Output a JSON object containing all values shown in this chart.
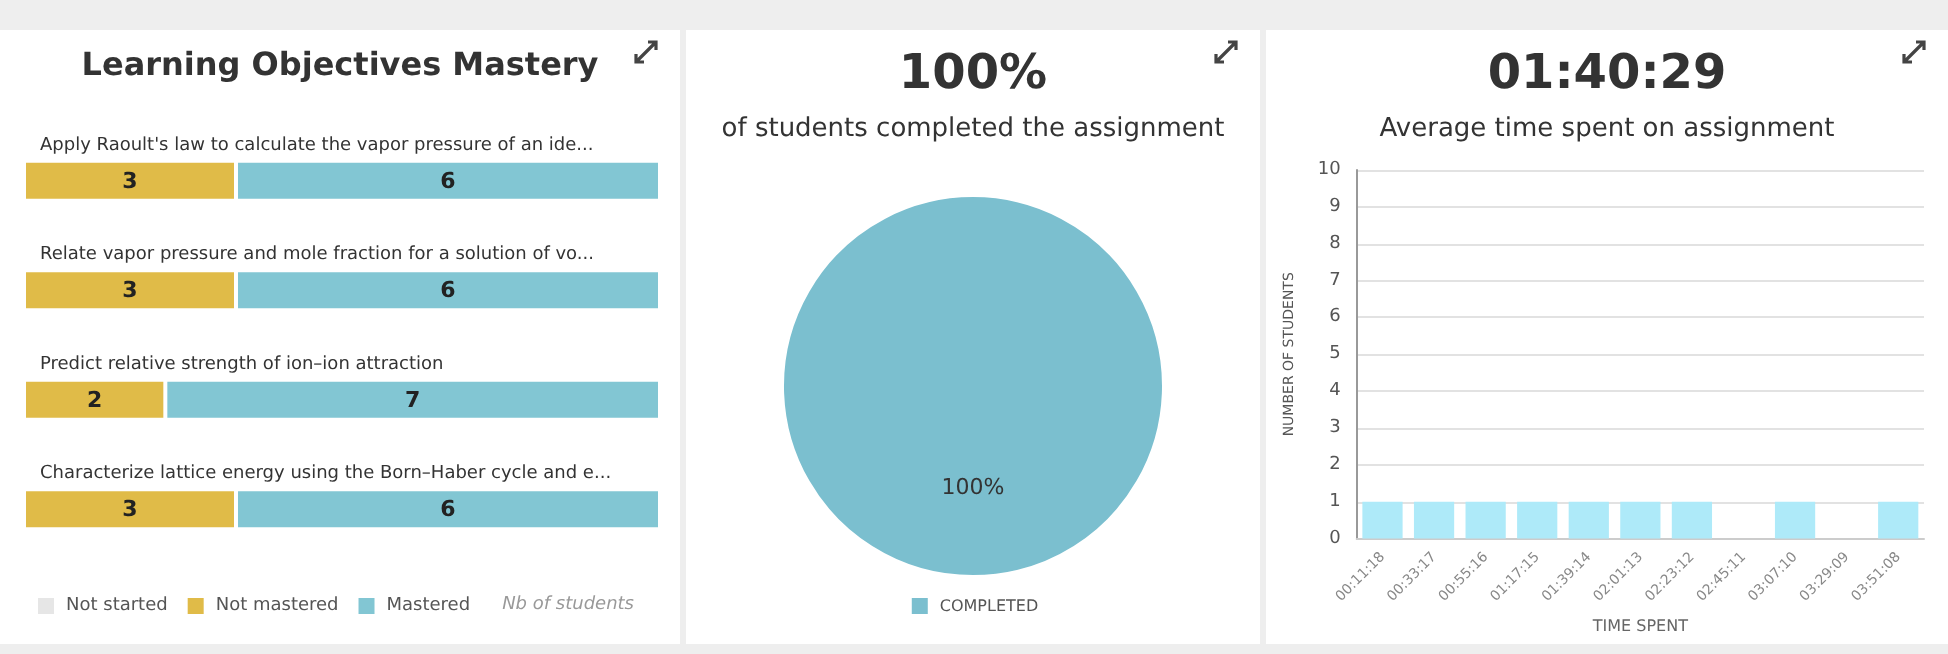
{
  "chart_data": [
    {
      "type": "bar",
      "title": "Learning Objectives Mastery",
      "orientation": "horizontal",
      "stacked": true,
      "categories": [
        "Apply Raoult's law to calculate the vapor pressure of an ide...",
        "Relate vapor pressure and mole fraction for a solution of vo...",
        "Predict relative strength of ion–ion attraction",
        "Characterize lattice energy using the Born–Haber cycle and e..."
      ],
      "series": [
        {
          "name": "Not started",
          "color": "#e6e6e6",
          "values": [
            0,
            0,
            0,
            0
          ],
          "value_labels": [
            null,
            null,
            null,
            null
          ]
        },
        {
          "name": "Not mastered",
          "color": "#e0bb48",
          "values": [
            3,
            3,
            2,
            3
          ],
          "value_labels": [
            "3",
            "3",
            "2",
            "3"
          ]
        },
        {
          "name": "Mastered",
          "color": "#82c6d3",
          "values": [
            6,
            6,
            7,
            6
          ],
          "value_labels": [
            "6",
            "6",
            "7",
            "6"
          ]
        }
      ],
      "xlim": [
        0,
        9
      ],
      "xlabel": "Nb of students",
      "tick_labels": "y",
      "legend": "bottom left",
      "grid": false
    },
    {
      "type": "pie",
      "title": "100%",
      "subtitle": "of students completed the assignment",
      "categories": [
        "COMPLETED"
      ],
      "values": [
        100
      ],
      "colors": [
        "#7bbfcf"
      ],
      "value_labels": [
        "100%"
      ],
      "legend": "bottom"
    },
    {
      "type": "bar",
      "title": "01:40:29",
      "subtitle": "Average time spent on assignment",
      "categories": [
        "00:11:18",
        "00:33:17",
        "00:55:16",
        "01:17:15",
        "01:39:14",
        "02:01:13",
        "02:23:12",
        "02:45:11",
        "03:07:10",
        "03:29:09",
        "03:51:08"
      ],
      "values": [
        1,
        1,
        1,
        1,
        1,
        1,
        1,
        0,
        1,
        0,
        1
      ],
      "color": "#aeeaf9",
      "xlabel": "TIME SPENT",
      "ylabel": "NUMBER OF STUDENTS",
      "ylim": [
        0,
        10
      ],
      "yticks": [
        0,
        1,
        2,
        3,
        4,
        5,
        6,
        7,
        8,
        9,
        10
      ],
      "grid": "y"
    }
  ]
}
